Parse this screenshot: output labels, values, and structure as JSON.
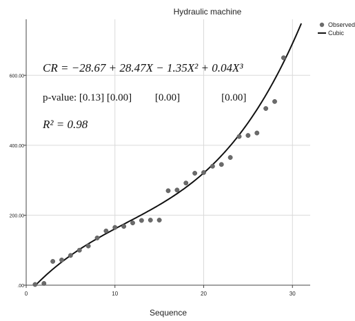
{
  "chart_data": {
    "type": "scatter",
    "title": "Hydraulic machine",
    "xlabel": "Sequence",
    "ylabel": "",
    "xlim": [
      0,
      32
    ],
    "ylim": [
      0,
      760
    ],
    "x_ticks": [
      {
        "value": 0,
        "label": "0"
      },
      {
        "value": 10,
        "label": "10"
      },
      {
        "value": 20,
        "label": "20"
      },
      {
        "value": 30,
        "label": "30"
      }
    ],
    "y_ticks": [
      {
        "value": 0,
        "label": ".00"
      },
      {
        "value": 200,
        "label": "200.00"
      },
      {
        "value": 400,
        "label": "400.00"
      },
      {
        "value": 600,
        "label": "600.00"
      }
    ],
    "grid": true,
    "legend": {
      "placement": "top-right",
      "entries": [
        {
          "label": "Observed",
          "symbol": "marker"
        },
        {
          "label": "Cubic",
          "symbol": "line"
        }
      ]
    },
    "series": [
      {
        "name": "Observed",
        "kind": "scatter",
        "color": "#6b6b6b",
        "points": [
          {
            "x": 1,
            "y": 2
          },
          {
            "x": 2,
            "y": 5
          },
          {
            "x": 3,
            "y": 68
          },
          {
            "x": 4,
            "y": 72
          },
          {
            "x": 5,
            "y": 85
          },
          {
            "x": 6,
            "y": 100
          },
          {
            "x": 7,
            "y": 112
          },
          {
            "x": 8,
            "y": 135
          },
          {
            "x": 9,
            "y": 155
          },
          {
            "x": 10,
            "y": 165
          },
          {
            "x": 11,
            "y": 168
          },
          {
            "x": 12,
            "y": 178
          },
          {
            "x": 13,
            "y": 185
          },
          {
            "x": 14,
            "y": 186
          },
          {
            "x": 15,
            "y": 186
          },
          {
            "x": 16,
            "y": 270
          },
          {
            "x": 17,
            "y": 272
          },
          {
            "x": 18,
            "y": 292
          },
          {
            "x": 19,
            "y": 320
          },
          {
            "x": 20,
            "y": 322
          },
          {
            "x": 21,
            "y": 340
          },
          {
            "x": 22,
            "y": 345
          },
          {
            "x": 23,
            "y": 365
          },
          {
            "x": 24,
            "y": 425
          },
          {
            "x": 25,
            "y": 428
          },
          {
            "x": 26,
            "y": 435
          },
          {
            "x": 27,
            "y": 505
          },
          {
            "x": 28,
            "y": 525
          },
          {
            "x": 29,
            "y": 650
          }
        ]
      },
      {
        "name": "Cubic",
        "kind": "line",
        "color": "#111111",
        "coefficients": [
          -28.67,
          28.47,
          -1.35,
          0.04
        ],
        "x_range": [
          1,
          31
        ]
      }
    ],
    "annotations": [
      {
        "id": "equation",
        "text": "CR = −28.67 + 28.47X − 1.35X² + 0.04X³"
      },
      {
        "id": "p-value",
        "text": "p-value: [0.13] [0.00]         [0.00]                [0.00]"
      },
      {
        "id": "r-squared",
        "text": "R² = 0.98"
      }
    ]
  }
}
